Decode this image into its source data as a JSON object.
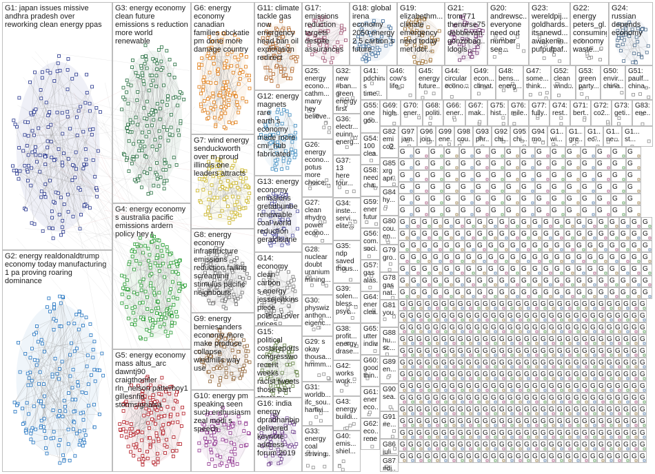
{
  "groups": [
    {
      "id": "G1",
      "label": "G1: japan issues missive\nandhra pradesh over\nreworking clean energy ppas",
      "color": "#1f2f8a"
    },
    {
      "id": "G2",
      "label": "G2: energy realdonaldtrump\neconomy today manufacturing\n1 pa proving roaring\ndominance",
      "color": "#1a6fbf"
    },
    {
      "id": "G3",
      "label": "G3: energy economy\nclean future\nemissions s reduction\nmore world\nrenewable",
      "color": "#1f6a3a"
    },
    {
      "id": "G4",
      "label": "G4: energy economy\ns australia pacific\nemissions ardern\npolicy hey t",
      "color": "#1e9a2a"
    },
    {
      "id": "G5",
      "label": "G5: energy economy\nmass altus_arc\ndawntj90\ncraigthomler\nrln_nelson patterboy1\ngillesnfio\nstormsignalsa",
      "color": "#b0121b"
    },
    {
      "id": "G6",
      "label": "G6: energy\neconomy\ncanadian\nfamilies cbckatie\npm done more\ndamage country",
      "color": "#e07a10"
    },
    {
      "id": "G7",
      "label": "G7: wind energy\nsenduckworth\nover m proud\nillinois one\nleaders attracts",
      "color": "#c9b21a"
    },
    {
      "id": "G8",
      "label": "G8: energy\neconomy\ninfrastructure\nemissions\nreduction failing\nscreaming\nstimulus pacific\nneighbours",
      "color": "#6a6a6a"
    },
    {
      "id": "G9",
      "label": "G9: energy\nberniesanders\neconomy more\nmake produce\ncollapse\nwindmills way\nuse",
      "color": "#8a5a2a"
    },
    {
      "id": "G10",
      "label": "G10: energy pm\nspeaking seen\nsuch enthusiasm\nzeal modi s\nspeech",
      "color": "#8a2a8a"
    },
    {
      "id": "G11",
      "label": "G11: climate\ntackle gas\nnow\nemergency\nhead ban oil\nexploration\nredirect",
      "color": "#b06020"
    },
    {
      "id": "G12",
      "label": "G12: energy\nmagnets rare\nearth s\neconomy\nmade more\ncmi_hub\nfabricated",
      "color": "#3a8ac0"
    },
    {
      "id": "G13",
      "label": "G13: energy\neconomy\nemissions\ngretathunbe\nrenewable\ncoal world\nreduction\ngeraldkutne",
      "color": "#4a4a9a"
    },
    {
      "id": "G14",
      "label": "G14:\neconomy\nclean carbon\ns energy\njessejenkins\npiece\npolitical over\nprices",
      "color": "#7a7a7a"
    },
    {
      "id": "G15",
      "label": "G15: political\ncostareports\ncongresswo\nrecent weeks\nracist tweets\nthose part\nstrategy",
      "color": "#5a7a3a"
    },
    {
      "id": "G16",
      "label": "G16: india\nenergy\ndpradhanbjp\ndelivered\nkeynote\naddress\nforum 2019",
      "color": "#6a3a8a"
    },
    {
      "id": "G17",
      "label": "G17:\nemissions\nreduction\ntargets\ndespite\nassurances",
      "color": "#9a4a6a"
    },
    {
      "id": "G18",
      "label": "G18: global\nirena\neconomy\n2050 energy\n2 5 carbon s\nfuture",
      "color": "#3a6a9a"
    },
    {
      "id": "G19",
      "label": "G19:\nelizabethm...\nclimate\nemergency\nneed today\nmet idol...",
      "color": "#9a6a2a"
    },
    {
      "id": "G21",
      "label": "G21:\ntrom771\nthenurse75\ndebbievan...\ngonzobag...\nldogls...",
      "color": "#6a2a6a"
    },
    {
      "id": "G20",
      "label": "G20:\nandrewsc...\neveryone\nneed out\nnumber\nsee...",
      "color": "#2a6a6a"
    },
    {
      "id": "G23",
      "label": "G23:\nwereldpij...\ngoldhards...\nitsanewd...\nawakenin...\npufpufpaf...",
      "color": "#6a6a2a"
    },
    {
      "id": "G22",
      "label": "G22:\nenergy\npeters_gl...\nconsuming\neconomy\nwaste...",
      "color": "#2a2a6a"
    },
    {
      "id": "G24",
      "label": "G24:\nrussian\ndepends\neconomy",
      "color": "#4a6a8a"
    },
    {
      "id": "G25",
      "label": "G25:\nenergy\necono...\ncathm...\nmany\nhey\nbelieve...",
      "color": "#8a3a3a"
    },
    {
      "id": "G32",
      "label": "G32:\nnew\n#ban...\ngreen\nenergy\nfirst",
      "color": "#3a8a3a"
    },
    {
      "id": "G41",
      "label": "G41:\npdchina\ns time...",
      "color": "#c0c0c0"
    },
    {
      "id": "G46",
      "label": "G46:\ncow's\nlife...",
      "color": "#c0c0c0"
    },
    {
      "id": "G45",
      "label": "G45:\nenergy\nfuture...",
      "color": "#c0c0c0"
    },
    {
      "id": "G44",
      "label": "G44:\ncircular\necono...",
      "color": "#c0c0c0"
    },
    {
      "id": "G49",
      "label": "G49:\necon...\nclimat...",
      "color": "#c0c0c0"
    },
    {
      "id": "G48",
      "label": "G48:\nbens...\nenerg...",
      "color": "#c0c0c0"
    },
    {
      "id": "G47",
      "label": "G47:\nsome...\nthink...",
      "color": "#c0c0c0"
    },
    {
      "id": "G52",
      "label": "G52:\nclean\nwind...",
      "color": "#c0c0c0"
    },
    {
      "id": "G53",
      "label": "G53:\ngreen\nparty...",
      "color": "#c0c0c0"
    },
    {
      "id": "G50",
      "label": "G50:\nenvir...\nchina...",
      "color": "#c0c0c0"
    },
    {
      "id": "G51",
      "label": "G51:\npaulf...\nchina...",
      "color": "#c0c0c0"
    },
    {
      "id": "G36",
      "label": "G36:\nelectr...\neuinn...\nenerg...",
      "color": "#c0c0c0"
    },
    {
      "id": "G26",
      "label": "G26:\nenergy\necono...\npotus\nmore\nchoice...",
      "color": "#c0c0c0"
    },
    {
      "id": "G37",
      "label": "G37:\n13\nhere\nfour...",
      "color": "#c0c0c0"
    },
    {
      "id": "G27",
      "label": "G27:\nclean\n#hydro\npower\necono...",
      "color": "#c0c0c0"
    },
    {
      "id": "G34",
      "label": "G34:\ninste...\nservi...\nelite...",
      "color": "#c0c0c0"
    },
    {
      "id": "G28",
      "label": "G28:\nnuclear\ndoubt\nuranium\nmining...",
      "color": "#c0c0c0"
    },
    {
      "id": "G35",
      "label": "G35:\nndp\nsaved\nthous...",
      "color": "#c0c0c0"
    },
    {
      "id": "G30",
      "label": "G30:\nphyswiz\nanthon...\neigenc...",
      "color": "#c0c0c0"
    },
    {
      "id": "G39",
      "label": "G39:\nsolen...\nbless...\npsyc...",
      "color": "#c0c0c0"
    },
    {
      "id": "G29",
      "label": "G29: s\nokay\nthousa...\nhmmm...",
      "color": "#c0c0c0"
    },
    {
      "id": "G38",
      "label": "G38:\nprofit...\nenergy\ndrase...",
      "color": "#c0c0c0"
    },
    {
      "id": "G42",
      "label": "G42:\nworks\nwork...",
      "color": "#c0c0c0"
    },
    {
      "id": "G31",
      "label": "G31:\nworldb...\nifc_sou...\nhartwi...",
      "color": "#c0c0c0"
    },
    {
      "id": "G43",
      "label": "G43:\nenergy\nbuildi...",
      "color": "#c0c0c0"
    },
    {
      "id": "G33",
      "label": "G33:\nenergy\ncoal\nstriving...",
      "color": "#c0c0c0"
    },
    {
      "id": "G40",
      "label": "G40:\nemis...\nshiel...",
      "color": "#c0c0c0"
    },
    {
      "id": "G55",
      "label": "G55:\none\ngoo...",
      "color": "#c0c0c0"
    },
    {
      "id": "G54",
      "label": "G54:\n100\nclea...",
      "color": "#c0c0c0"
    },
    {
      "id": "G58",
      "label": "G58:\nneed\ncha...",
      "color": "#c0c0c0"
    },
    {
      "id": "G59",
      "label": "G59:\nener\nfutur",
      "color": "#c0c0c0"
    },
    {
      "id": "G56",
      "label": "G56:\ncom...\nsoci...",
      "color": "#c0c0c0"
    },
    {
      "id": "G57",
      "label": "G57:\ngas\nalas...",
      "color": "#c0c0c0"
    },
    {
      "id": "G64",
      "label": "G64:\nener\nclea...",
      "color": "#c0c0c0"
    },
    {
      "id": "G65",
      "label": "G65:\nutter\nindiv...",
      "color": "#c0c0c0"
    },
    {
      "id": "G60",
      "label": "G60:\ngood\nthin...",
      "color": "#c0c0c0"
    },
    {
      "id": "G61",
      "label": "G61:\nener\neco...",
      "color": "#c0c0c0"
    },
    {
      "id": "G62",
      "label": "G62:\neco...\nrene...",
      "color": "#c0c0c0"
    },
    {
      "id": "G69",
      "label": "G69:\nhigh...",
      "color": "#c0c0c0"
    },
    {
      "id": "G70",
      "label": "G70:\nener...",
      "color": "#c0c0c0"
    },
    {
      "id": "G68",
      "label": "G68:\npoliti...",
      "color": "#c0c0c0"
    },
    {
      "id": "G66",
      "label": "G66:\nener...",
      "color": "#c0c0c0"
    },
    {
      "id": "G67",
      "label": "G67:\nmak...",
      "color": "#c0c0c0"
    },
    {
      "id": "G75",
      "label": "G75:\nhist...",
      "color": "#c0c0c0"
    },
    {
      "id": "G76",
      "label": "G76:\nmile...",
      "color": "#c0c0c0"
    },
    {
      "id": "G77",
      "label": "G77:\nfully...",
      "color": "#c0c0c0"
    },
    {
      "id": "G74",
      "label": "G74:\nrest...",
      "color": "#c0c0c0"
    },
    {
      "id": "G71",
      "label": "G71:\nbert...",
      "color": "#c0c0c0"
    },
    {
      "id": "G72",
      "label": "G72:\nco2...",
      "color": "#c0c0c0"
    },
    {
      "id": "G73",
      "label": "G73:\ngeti...",
      "color": "#c0c0c0"
    },
    {
      "id": "G83",
      "label": "G83:\nene...",
      "color": "#c0c0c0"
    },
    {
      "id": "G82",
      "label": "G82:\nemi\nco2...",
      "color": "#c0c0c0"
    },
    {
      "id": "G85",
      "label": "G85:\nxrg\napr...",
      "color": "#c0c0c0"
    },
    {
      "id": "G84",
      "label": "G84:\nhy...",
      "color": "#c0c0c0"
    },
    {
      "id": "G80",
      "label": "G80:\ncou...\nen...",
      "color": "#c0c0c0"
    },
    {
      "id": "G79",
      "label": "G79:\ngro...",
      "color": "#c0c0c0"
    },
    {
      "id": "G78",
      "label": "G78:\ngas\nnat...",
      "color": "#c0c0c0"
    },
    {
      "id": "G81",
      "label": "G81:\nyou...",
      "color": "#c0c0c0"
    },
    {
      "id": "G88",
      "label": "G88:\nhu...\nsc...",
      "color": "#c0c0c0"
    },
    {
      "id": "G89",
      "label": "G89:\nen...",
      "color": "#c0c0c0"
    },
    {
      "id": "G90",
      "label": "G90:\nsea...",
      "color": "#c0c0c0"
    },
    {
      "id": "G91",
      "label": "G91:\n#e...",
      "color": "#c0c0c0"
    },
    {
      "id": "G86",
      "label": "G86:\njuli...",
      "color": "#c0c0c0"
    },
    {
      "id": "G87",
      "label": "G87:\n#dj...",
      "color": "#c0c0c0"
    },
    {
      "id": "G97",
      "label": "G97:\njam...",
      "color": "#c0c0c0"
    },
    {
      "id": "G96",
      "label": "G96:\njoin...",
      "color": "#c0c0c0"
    },
    {
      "id": "G99",
      "label": "G99:\nene...",
      "color": "#c0c0c0"
    },
    {
      "id": "G98",
      "label": "G98:\ncou...",
      "color": "#c0c0c0"
    },
    {
      "id": "G93",
      "label": "G93:\nphr...",
      "color": "#c0c0c0"
    },
    {
      "id": "G92",
      "label": "G92:\nchi...",
      "color": "#c0c0c0"
    },
    {
      "id": "G95",
      "label": "G95:\nchi...",
      "color": "#c0c0c0"
    },
    {
      "id": "G94",
      "label": "G94:\nmo...",
      "color": "#c0c0c0"
    },
    {
      "id": "G1x",
      "label": "G1...\nwi...",
      "color": "#c0c0c0"
    },
    {
      "id": "G1y",
      "label": "G1...\ngre...",
      "color": "#c0c0c0"
    },
    {
      "id": "G1z",
      "label": "G1...\nec...",
      "color": "#c0c0c0"
    },
    {
      "id": "G1w",
      "label": "G1...\nne...",
      "color": "#c0c0c0"
    },
    {
      "id": "G1v",
      "label": "G1...\nst...",
      "color": "#c0c0c0"
    }
  ],
  "tiny_label": "G"
}
